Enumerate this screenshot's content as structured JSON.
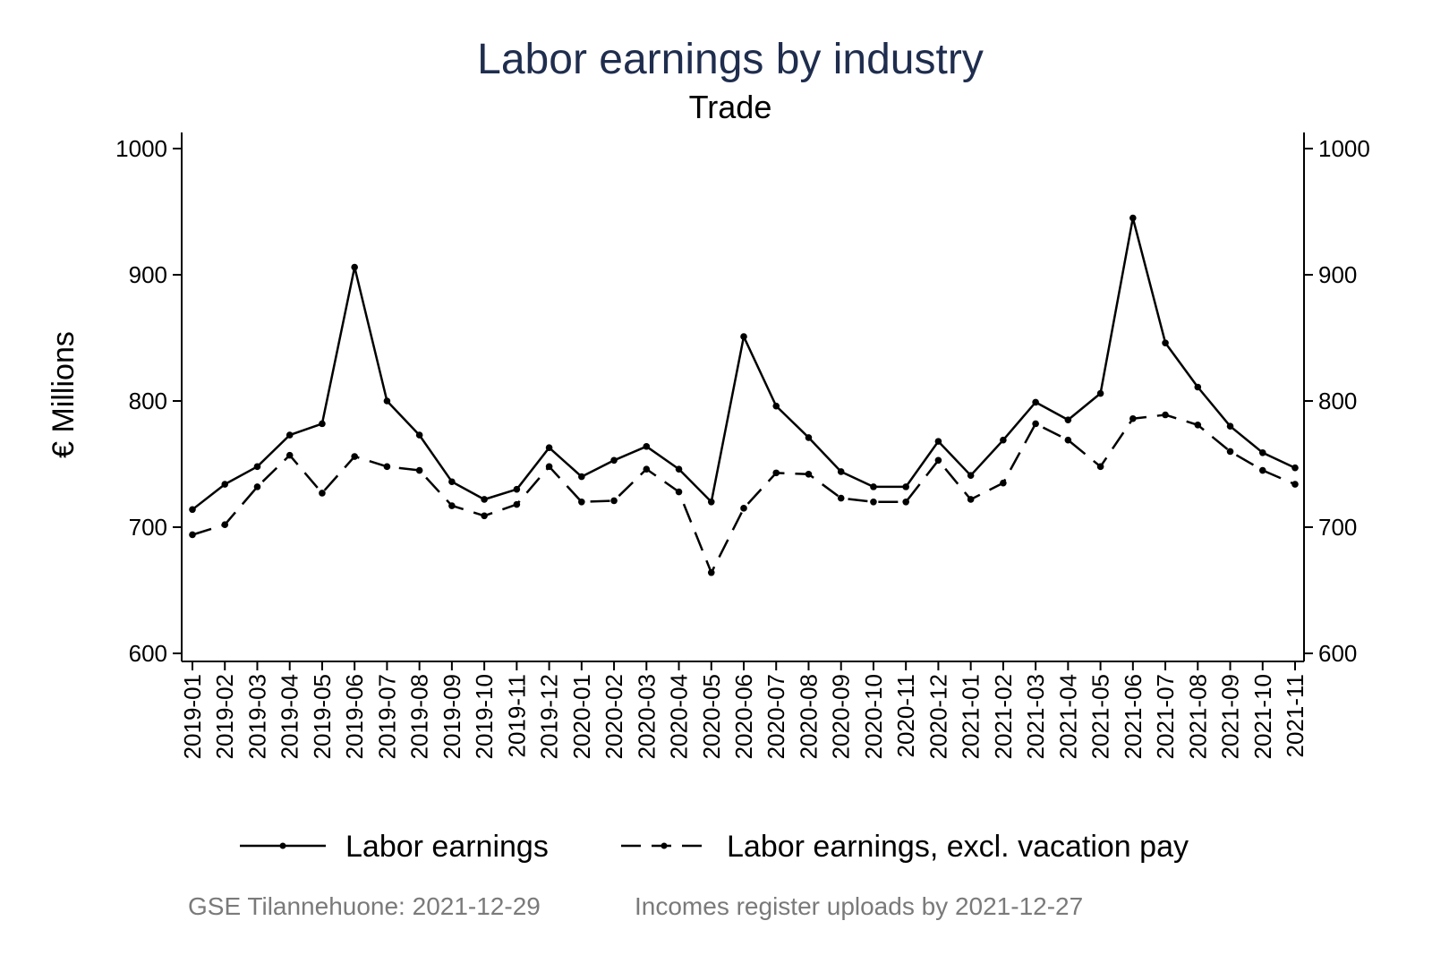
{
  "chart_data": {
    "type": "line",
    "title": "Labor earnings by industry",
    "subtitle": "Trade",
    "ylabel": "€ Millions",
    "ylim": [
      600,
      1000
    ],
    "yticks": [
      "600",
      "700",
      "800",
      "900",
      "1000"
    ],
    "dual_y_axis": true,
    "grid": false,
    "legend_position": "bottom",
    "x": [
      "2019-01",
      "2019-02",
      "2019-03",
      "2019-04",
      "2019-05",
      "2019-06",
      "2019-07",
      "2019-08",
      "2019-09",
      "2019-10",
      "2019-11",
      "2019-12",
      "2020-01",
      "2020-02",
      "2020-03",
      "2020-04",
      "2020-05",
      "2020-06",
      "2020-07",
      "2020-08",
      "2020-09",
      "2020-10",
      "2020-11",
      "2020-12",
      "2021-01",
      "2021-02",
      "2021-03",
      "2021-04",
      "2021-05",
      "2021-06",
      "2021-07",
      "2021-08",
      "2021-09",
      "2021-10",
      "2021-11"
    ],
    "series": [
      {
        "name": "Labor earnings",
        "style": "solid",
        "color": "#000000",
        "values": [
          714,
          734,
          748,
          773,
          782,
          906,
          800,
          773,
          736,
          722,
          730,
          763,
          740,
          753,
          764,
          746,
          720,
          851,
          796,
          771,
          744,
          732,
          732,
          768,
          741,
          769,
          799,
          785,
          806,
          945,
          846,
          811,
          780,
          759,
          747
        ]
      },
      {
        "name": "Labor earnings, excl. vacation pay",
        "style": "dashed",
        "color": "#000000",
        "values": [
          694,
          702,
          732,
          757,
          727,
          756,
          748,
          745,
          717,
          709,
          718,
          748,
          720,
          721,
          746,
          728,
          664,
          715,
          743,
          742,
          723,
          720,
          720,
          753,
          722,
          735,
          782,
          769,
          748,
          786,
          789,
          781,
          760,
          745,
          734
        ]
      }
    ]
  },
  "footer": {
    "source": "GSE Tilannehuone: 2021-12-29",
    "uploads": "Incomes register uploads by 2021-12-27"
  }
}
